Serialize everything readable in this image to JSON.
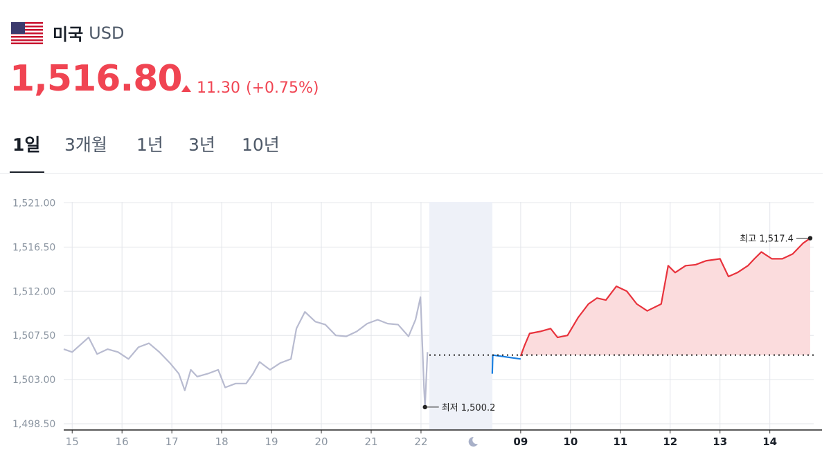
{
  "header": {
    "country": "미국",
    "currency": "USD",
    "price": "1,516.80",
    "change": "11.30",
    "change_rate": "(+0.75%)"
  },
  "tabs": [
    "1일",
    "3개월",
    "1년",
    "3년",
    "10년"
  ],
  "chart_data": {
    "type": "line",
    "xlim": [
      -0.17,
      14.88
    ],
    "ylim": [
      1497.87,
      1521.1
    ],
    "xticks": [
      {
        "value": 0,
        "label": "15"
      },
      {
        "value": 1,
        "label": "16"
      },
      {
        "value": 2,
        "label": "17"
      },
      {
        "value": 3,
        "label": "18"
      },
      {
        "value": 4,
        "label": "19"
      },
      {
        "value": 5,
        "label": "20"
      },
      {
        "value": 6,
        "label": "21"
      },
      {
        "value": 7,
        "label": "22"
      },
      {
        "value": 9,
        "label": "09"
      },
      {
        "value": 10,
        "label": "10"
      },
      {
        "value": 11,
        "label": "11"
      },
      {
        "value": 12,
        "label": "12"
      },
      {
        "value": 13,
        "label": "13"
      },
      {
        "value": 14,
        "label": "14"
      }
    ],
    "yticks": [
      {
        "value": 1498.5,
        "label": "1,498.50"
      },
      {
        "value": 1503,
        "label": "1,503.00"
      },
      {
        "value": 1507.5,
        "label": "1,507.50"
      },
      {
        "value": 1512,
        "label": "1,512.00"
      },
      {
        "value": 1516.5,
        "label": "1,516.50"
      },
      {
        "value": 1521,
        "label": "1,521.00"
      }
    ],
    "grid": true,
    "baseline": 1505.5,
    "series": [
      {
        "color": "#b8bbd0",
        "x": [
          -0.17,
          0,
          0.22,
          0.33,
          0.5,
          0.71,
          0.92,
          1.13,
          1.33,
          1.54,
          1.75,
          1.96,
          2.14,
          2.26,
          2.38,
          2.51,
          2.72,
          2.93,
          3.07,
          3.28,
          3.49,
          3.63,
          3.76,
          3.97,
          4.18,
          4.39,
          4.5,
          4.67,
          4.88,
          5.08,
          5.29,
          5.5,
          5.71,
          5.92,
          6.13,
          6.33,
          6.54,
          6.75,
          6.89,
          6.99,
          7.06,
          7.08,
          7.13
        ],
        "values": [
          1506.1,
          1505.8,
          1506.8,
          1507.3,
          1505.6,
          1506.1,
          1505.8,
          1505.1,
          1506.3,
          1506.7,
          1505.8,
          1504.7,
          1503.6,
          1501.9,
          1504.0,
          1503.3,
          1503.6,
          1504.0,
          1502.2,
          1502.6,
          1502.6,
          1503.6,
          1504.8,
          1504.0,
          1504.7,
          1505.1,
          1508.2,
          1509.9,
          1508.9,
          1508.6,
          1507.5,
          1507.4,
          1507.9,
          1508.7,
          1509.1,
          1508.7,
          1508.6,
          1507.4,
          1509.1,
          1511.4,
          1502.2,
          1500.2,
          1505.8
        ]
      },
      {
        "color": "#1a7fe0",
        "x": [
          8.43,
          8.44,
          9
        ],
        "values": [
          1503.6,
          1505.5,
          1505.1
        ]
      },
      {
        "color": "#e8323c",
        "area_color": "#fbdcdd",
        "x": [
          9,
          9.08,
          9.18,
          9.39,
          9.6,
          9.74,
          9.94,
          10.15,
          10.36,
          10.53,
          10.71,
          10.92,
          11.13,
          11.33,
          11.54,
          11.82,
          11.96,
          12.1,
          12.31,
          12.51,
          12.72,
          13,
          13.17,
          13.35,
          13.56,
          13.69,
          13.83,
          14.04,
          14.25,
          14.46,
          14.67,
          14.81
        ],
        "values": [
          1505.4,
          1506.5,
          1507.7,
          1507.9,
          1508.2,
          1507.3,
          1507.5,
          1509.3,
          1510.7,
          1511.3,
          1511.1,
          1512.5,
          1512.0,
          1510.7,
          1510.0,
          1510.7,
          1514.6,
          1513.9,
          1514.6,
          1514.7,
          1515.1,
          1515.3,
          1513.5,
          1513.9,
          1514.6,
          1515.3,
          1516.0,
          1515.3,
          1515.3,
          1515.8,
          1516.9,
          1517.4
        ]
      }
    ],
    "annotations": [
      {
        "text": "최고 1,517.4"
      },
      {
        "text": "최저 1,500.2"
      }
    ]
  }
}
